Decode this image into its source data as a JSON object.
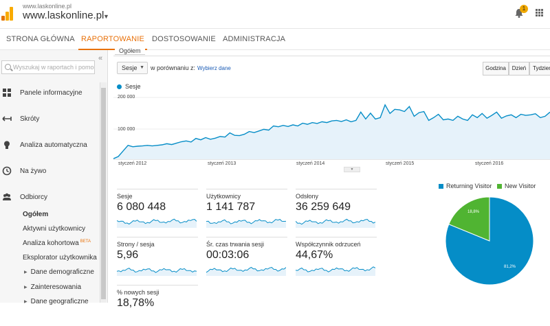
{
  "header": {
    "account_url": "www.laskonline.pl",
    "property_name": "www.laskonline.pl",
    "notification_count": "1",
    "colors": {
      "logo_orange": "#f9ab00",
      "logo_dark": "#e37400",
      "badge": "#f0a800"
    },
    "icons": [
      "analytics-logo-icon",
      "caret-down-icon",
      "bell-icon",
      "apps-grid-icon"
    ]
  },
  "nav": {
    "tabs": [
      {
        "label": "STRONA GŁÓWNA",
        "active": false
      },
      {
        "label": "RAPORTOWANIE",
        "active": true
      },
      {
        "label": "DOSTOSOWANIE",
        "active": false
      },
      {
        "label": "ADMINISTRACJA",
        "active": false
      }
    ],
    "accent": "#e8710a"
  },
  "sidebar": {
    "search_placeholder": "Wyszukaj w raportach i pomocy",
    "items": [
      {
        "label": "Panele informacyjne",
        "icon": "grid-icon"
      },
      {
        "label": "Skróty",
        "icon": "shortcut-arrow-icon"
      },
      {
        "label": "Analiza automatyczna",
        "icon": "lightbulb-icon"
      },
      {
        "label": "Na żywo",
        "icon": "clock-icon"
      },
      {
        "label": "Odbiorcy",
        "icon": "people-icon"
      }
    ],
    "subitems": [
      {
        "label": "Ogółem",
        "bold": true
      },
      {
        "label": "Aktywni użytkownicy"
      },
      {
        "label": "Analiza kohortowa",
        "badge": "BETA"
      },
      {
        "label": "Eksplorator użytkownika"
      },
      {
        "label": "Dane demograficzne",
        "expandable": true
      },
      {
        "label": "Zainteresowania",
        "expandable": true
      },
      {
        "label": "Dane geograficzne",
        "expandable": true
      }
    ]
  },
  "main": {
    "section_tab": "Ogółem",
    "metric_select": "Sesje",
    "compare_label": "w porównaniu z:",
    "compare_link": "Wybierz dane",
    "granularity": [
      "Godzina",
      "Dzień",
      "Tydzień"
    ]
  },
  "metrics": [
    {
      "label": "Sesje",
      "value": "6 080 448"
    },
    {
      "label": "Użytkownicy",
      "value": "1 141 787"
    },
    {
      "label": "Odsłony",
      "value": "36 259 649"
    },
    {
      "label": "Strony / sesja",
      "value": "5,96"
    },
    {
      "label": "Śr. czas trwania sesji",
      "value": "00:03:06"
    },
    {
      "label": "Współczynnik odrzuceń",
      "value": "44,67%"
    },
    {
      "label": "% nowych sesji",
      "value": "18,78%"
    }
  ],
  "chart_data": [
    {
      "type": "area",
      "series": [
        {
          "name": "Sesje",
          "color": "#058dc7",
          "values": [
            2000,
            10000,
            30000,
            50000,
            45000,
            47000,
            48000,
            50000,
            48000,
            50000,
            52000,
            56000,
            53000,
            58000,
            63000,
            66000,
            62000,
            75000,
            70000,
            78000,
            72000,
            76000,
            82000,
            80000,
            95000,
            86000,
            85000,
            90000,
            100000,
            96000,
            102000,
            108000,
            105000,
            120000,
            117000,
            122000,
            118000,
            124000,
            120000,
            130000,
            126000,
            132000,
            129000,
            135000,
            132000,
            138000,
            140000,
            136000,
            142000,
            135000,
            140000,
            170000,
            145000,
            166000,
            145000,
            150000,
            196000,
            165000,
            180000,
            178000,
            172000,
            190000,
            155000,
            168000,
            172000,
            140000,
            150000,
            162000,
            142000,
            145000,
            140000,
            155000,
            145000,
            140000,
            160000,
            150000,
            165000,
            148000,
            158000,
            170000,
            148000,
            156000,
            160000,
            150000,
            162000,
            158000,
            160000,
            164000,
            150000,
            155000,
            170000
          ]
        }
      ],
      "x_tick_labels": [
        "styczeń 2012",
        "styczeń 2013",
        "styczeń 2014",
        "styczeń 2015",
        "styczeń 2016"
      ],
      "y_tick_labels": [
        "100 000",
        "200 000"
      ],
      "ylim": [
        0,
        240000
      ]
    },
    {
      "type": "pie",
      "labels": [
        "Returning Visitor",
        "New Visitor"
      ],
      "values": [
        81.2,
        18.8
      ],
      "slice_labels": [
        "81,2%",
        "18,8%"
      ],
      "colors": [
        "#058dc7",
        "#50b432"
      ]
    }
  ]
}
